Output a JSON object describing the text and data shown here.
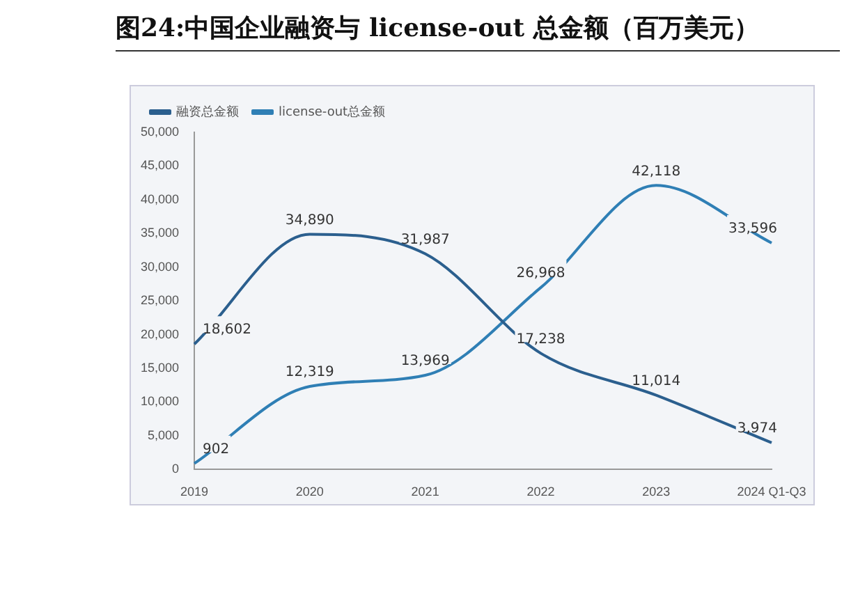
{
  "chart_data": {
    "type": "line",
    "title": "图24:中国企业融资与 license-out 总金额（百万美元）",
    "categories": [
      "2019",
      "2020",
      "2021",
      "2022",
      "2023",
      "2024 Q1-Q3"
    ],
    "series": [
      {
        "name": "融资总金额",
        "color": "#2b5f8e",
        "values": [
          18602,
          34890,
          31987,
          17238,
          11014,
          3974
        ],
        "value_labels": [
          "18,602",
          "34,890",
          "31,987",
          "17,238",
          "11,014",
          "3,974"
        ]
      },
      {
        "name": "license-out总金额",
        "color": "#2f7fb5",
        "values": [
          902,
          12319,
          13969,
          26968,
          42118,
          33596
        ],
        "value_labels": [
          "902",
          "12,319",
          "13,969",
          "26,968",
          "42,118",
          "33,596"
        ]
      }
    ],
    "ylim": [
      0,
      50000
    ],
    "yticks": [
      {
        "value": 0,
        "label": "0"
      },
      {
        "value": 5000,
        "label": "5,000"
      },
      {
        "value": 10000,
        "label": "10,000"
      },
      {
        "value": 15000,
        "label": "15,000"
      },
      {
        "value": 20000,
        "label": "20,000"
      },
      {
        "value": 25000,
        "label": "25,000"
      },
      {
        "value": 30000,
        "label": "30,000"
      },
      {
        "value": 35000,
        "label": "35,000"
      },
      {
        "value": 40000,
        "label": "40,000"
      },
      {
        "value": 45000,
        "label": "45,000"
      },
      {
        "value": 50000,
        "label": "50,000"
      }
    ],
    "grid": false,
    "legend": "top left",
    "marker": "none",
    "line_style": "solid"
  }
}
